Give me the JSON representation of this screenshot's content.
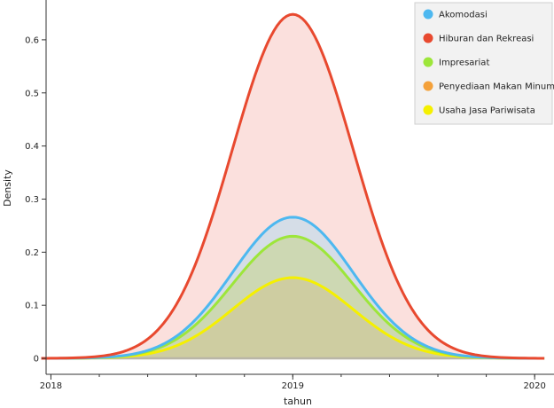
{
  "chart_data": {
    "type": "area",
    "title": "",
    "xlabel": "tahun",
    "ylabel": "Density",
    "xlim": [
      2017.98,
      2020.08
    ],
    "ylim": [
      -0.03,
      0.675
    ],
    "x_ticks": [
      2018,
      2019,
      2020
    ],
    "x_tick_labels": [
      "2018",
      "2019",
      "2020"
    ],
    "y_ticks": [
      0,
      0.1,
      0.2,
      0.3,
      0.4,
      0.5,
      0.6
    ],
    "y_tick_labels": [
      "0",
      "0.1",
      "0.2",
      "0.3",
      "0.4",
      "0.5",
      "0.6"
    ],
    "x_minor_step": 0.2,
    "x_range_drawn": [
      2017.96,
      2020.04
    ],
    "grid": false,
    "legend_position": "top-right",
    "series": [
      {
        "name": "Akomodasi",
        "color": "#4db8f0",
        "fill": "#c8dcea",
        "peak_x": 2019,
        "peak_density": 0.266,
        "sd": 0.25
      },
      {
        "name": "Hiburan dan Rekreasi",
        "color": "#e8492f",
        "fill": "#f9d6d2",
        "peak_x": 2019,
        "peak_density": 0.648,
        "sd": 0.25
      },
      {
        "name": "Impresariat",
        "color": "#9de63a",
        "fill": "#c9d5a2",
        "peak_x": 2019,
        "peak_density": 0.23,
        "sd": 0.25
      },
      {
        "name": "Penyediaan Makan Minum",
        "color": "#f4a13a",
        "fill": "#f4a13a",
        "peak_x": 2019,
        "peak_density": 0.0,
        "sd": 0.25
      },
      {
        "name": "Usaha Jasa Pariwisata",
        "color": "#f5f000",
        "fill": "#cdc99b",
        "peak_x": 2019,
        "peak_density": 0.152,
        "sd": 0.25
      }
    ]
  }
}
